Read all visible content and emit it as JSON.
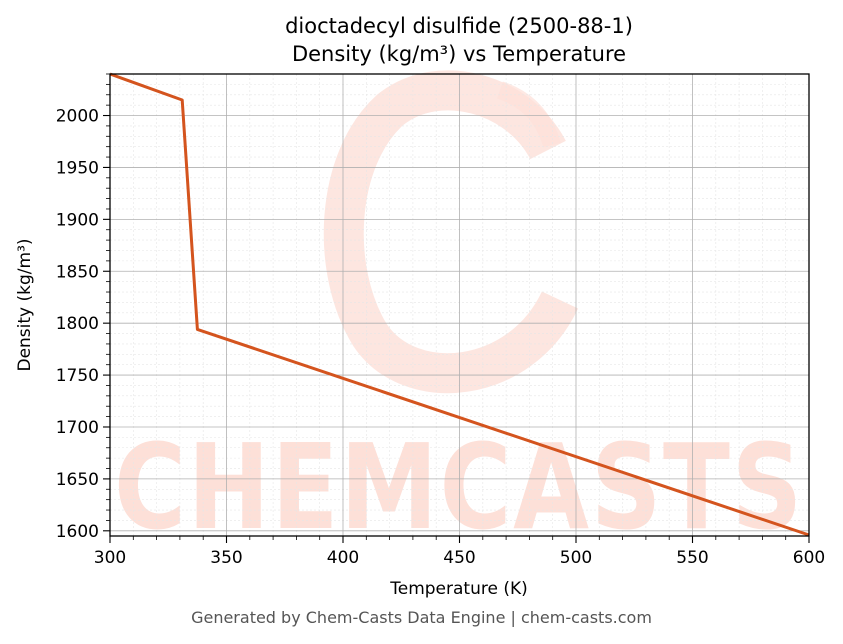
{
  "chart_data": {
    "type": "line",
    "title_line1": "dioctadecyl disulfide (2500-88-1)",
    "title_line2": "Density (kg/m³) vs Temperature",
    "xlabel": "Temperature (K)",
    "ylabel": "Density (kg/m³)",
    "xlim": [
      300,
      600
    ],
    "ylim": [
      1595,
      2040
    ],
    "xticks": [
      300,
      350,
      400,
      450,
      500,
      550,
      600
    ],
    "yticks": [
      1600,
      1650,
      1700,
      1750,
      1800,
      1850,
      1900,
      1950,
      2000
    ],
    "grid": true,
    "series": [
      {
        "color": "#d4541e",
        "x": [
          300,
          331,
          337.5,
          600
        ],
        "y": [
          2040,
          2015,
          1794,
          1596
        ]
      }
    ]
  },
  "watermark": {
    "text": "CHEMCASTS",
    "color": "#fde0d8"
  },
  "footer": "Generated by Chem-Casts Data Engine | chem-casts.com"
}
